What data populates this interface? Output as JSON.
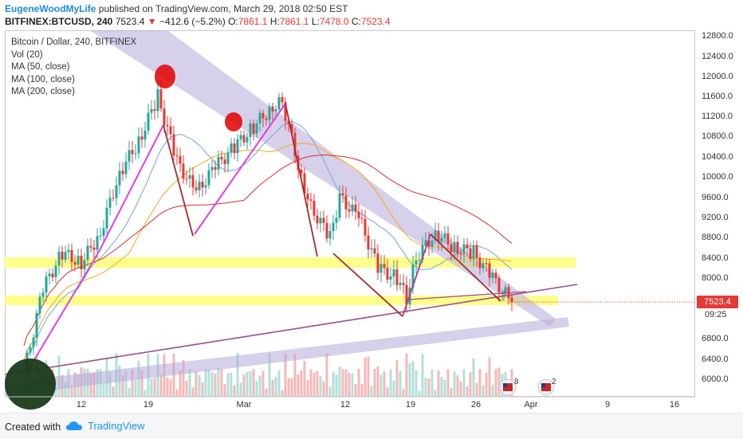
{
  "header": {
    "author": "EugeneWoodMyLife",
    "published_text": "published on TradingView.com, March 29, 2018 02:50 EST",
    "symbol": "BITFINEX:BTCUSD, 240",
    "last": "7523.4",
    "change_arrow": "▼",
    "change": "−412.6 (−5.2%)",
    "o_label": "O:",
    "o_val": "7861.1",
    "h_label": "H:",
    "h_val": "7861.1",
    "l_label": "L:",
    "l_val": "7478.0",
    "c_label": "C:",
    "c_val": "7523.4"
  },
  "legend": {
    "title": "Bitcoin / Dollar, 240, BITFINEX",
    "vol": "Vol (20)",
    "ma50": "MA (50, close)",
    "ma100": "MA (100, close)",
    "ma200": "MA (200, close)"
  },
  "y_axis": [
    "12800.0",
    "12400.0",
    "12000.0",
    "11600.0",
    "11200.0",
    "10800.0",
    "10400.0",
    "10000.0",
    "9600.0",
    "9200.0",
    "8800.0",
    "8400.0",
    "8000.0",
    "6800.0",
    "6400.0",
    "6000.0"
  ],
  "price_label": "7523.4",
  "countdown": "09:25",
  "x_axis": [
    "12",
    "19",
    "Mar",
    "12",
    "19",
    "26",
    "Apr",
    "9",
    "16"
  ],
  "events": {
    "badge1": "8",
    "badge2": "2"
  },
  "footer": {
    "created": "Created with",
    "brand": "TradingView"
  },
  "colors": {
    "down": "#e53935",
    "up": "#26a69a",
    "brand": "#2196f3",
    "ma50": "#f5a623",
    "ma100": "#6fa8dc",
    "ma200": "#d32f2f",
    "highlight": "#ffff66",
    "channel": "#b6a9d8"
  },
  "chart_data": {
    "type": "candlestick",
    "symbol": "BITFINEX:BTCUSD",
    "interval": "240",
    "ylim": [
      5800,
      12900
    ],
    "last_close": 7523.4,
    "close_path": [
      {
        "x": "Feb 6",
        "y": 6100
      },
      {
        "x": "Feb 8",
        "y": 7800
      },
      {
        "x": "Feb 10",
        "y": 8500
      },
      {
        "x": "Feb 12",
        "y": 8300
      },
      {
        "x": "Feb 14",
        "y": 8900
      },
      {
        "x": "Feb 16",
        "y": 10100
      },
      {
        "x": "Feb 18",
        "y": 10700
      },
      {
        "x": "Feb 20",
        "y": 11600
      },
      {
        "x": "Feb 22",
        "y": 10300
      },
      {
        "x": "Feb 24",
        "y": 9700
      },
      {
        "x": "Feb 26",
        "y": 10200
      },
      {
        "x": "Feb 28",
        "y": 10600
      },
      {
        "x": "Mar 2",
        "y": 11000
      },
      {
        "x": "Mar 4",
        "y": 11400
      },
      {
        "x": "Mar 5",
        "y": 11500
      },
      {
        "x": "Mar 7",
        "y": 10000
      },
      {
        "x": "Mar 8",
        "y": 9400
      },
      {
        "x": "Mar 10",
        "y": 8800
      },
      {
        "x": "Mar 11",
        "y": 9600
      },
      {
        "x": "Mar 13",
        "y": 9200
      },
      {
        "x": "Mar 15",
        "y": 8200
      },
      {
        "x": "Mar 17",
        "y": 8000
      },
      {
        "x": "Mar 18",
        "y": 7600
      },
      {
        "x": "Mar 19",
        "y": 8400
      },
      {
        "x": "Mar 21",
        "y": 8900
      },
      {
        "x": "Mar 23",
        "y": 8600
      },
      {
        "x": "Mar 25",
        "y": 8500
      },
      {
        "x": "Mar 27",
        "y": 8000
      },
      {
        "x": "Mar 29",
        "y": 7523
      }
    ]
  }
}
